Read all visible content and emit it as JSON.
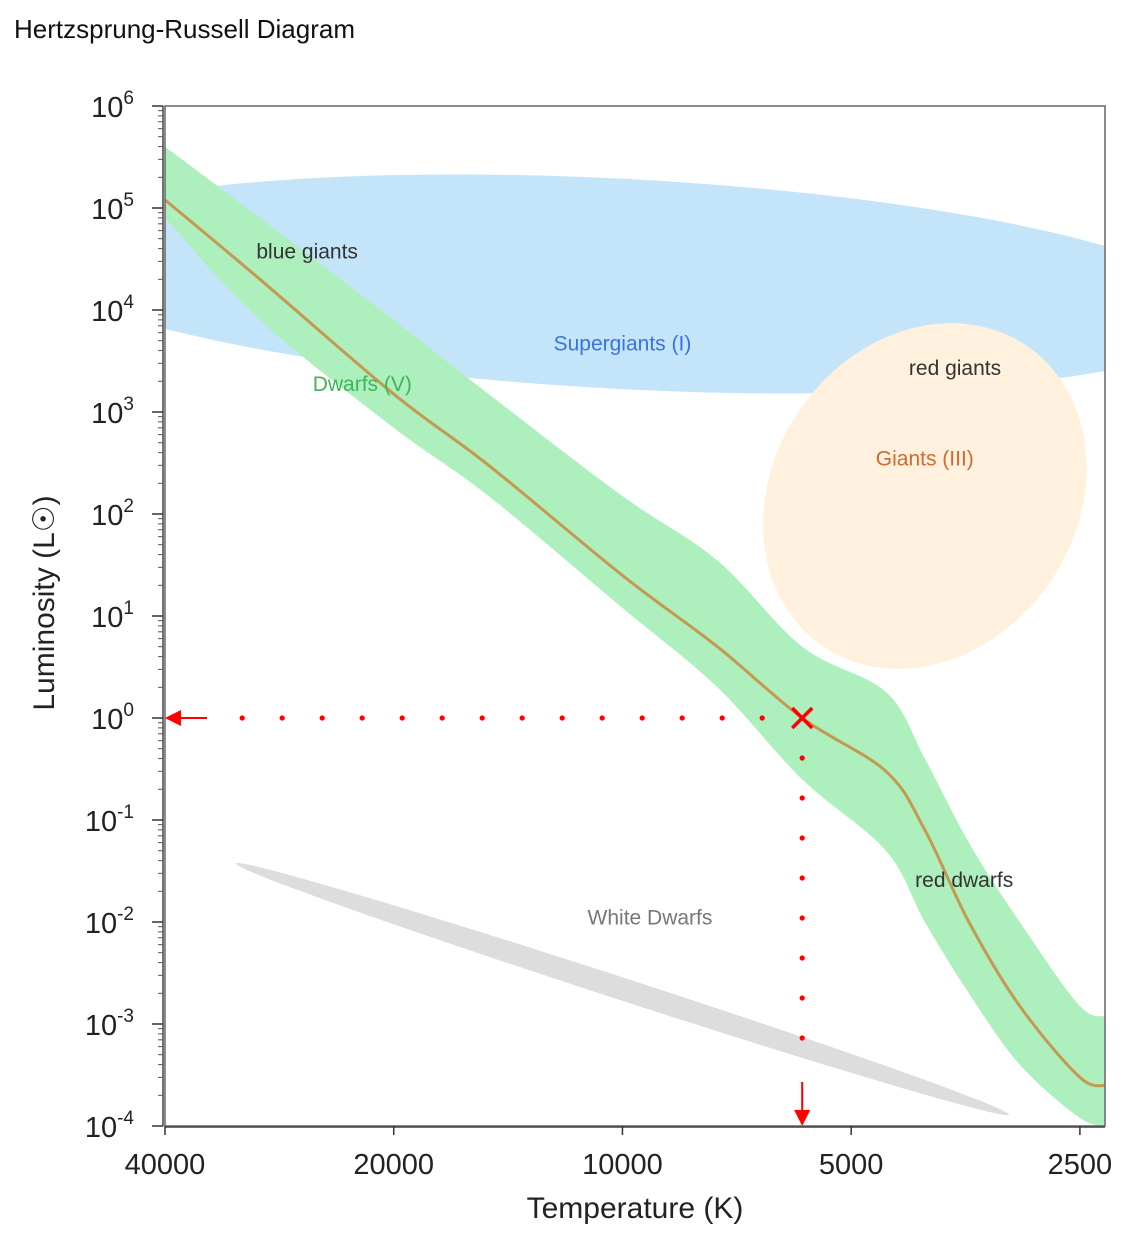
{
  "page": {
    "title": "Hertzsprung-Russell Diagram"
  },
  "chart_data": {
    "type": "scatter",
    "title": "Hertzsprung-Russell Diagram",
    "xlabel": "Temperature (K)",
    "ylabel": "Luminosity (L☉)",
    "x_scale": "log",
    "x_reversed": true,
    "xlim": [
      40000,
      2300
    ],
    "y_scale": "log",
    "ylim": [
      0.0001,
      1000000
    ],
    "x_ticks": [
      {
        "value": 40000,
        "label": "40000"
      },
      {
        "value": 20000,
        "label": "20000"
      },
      {
        "value": 10000,
        "label": "10000"
      },
      {
        "value": 5000,
        "label": "5000"
      },
      {
        "value": 2500,
        "label": "2500"
      }
    ],
    "y_ticks": [
      {
        "value": 1000000,
        "base": "10",
        "exp": "6"
      },
      {
        "value": 100000,
        "base": "10",
        "exp": "5"
      },
      {
        "value": 10000,
        "base": "10",
        "exp": "4"
      },
      {
        "value": 1000,
        "base": "10",
        "exp": "3"
      },
      {
        "value": 100,
        "base": "10",
        "exp": "2"
      },
      {
        "value": 10,
        "base": "10",
        "exp": "1"
      },
      {
        "value": 1,
        "base": "10",
        "exp": "0"
      },
      {
        "value": 0.1,
        "base": "10",
        "exp": "-1"
      },
      {
        "value": 0.01,
        "base": "10",
        "exp": "-2"
      },
      {
        "value": 0.001,
        "base": "10",
        "exp": "-3"
      },
      {
        "value": 0.0001,
        "base": "10",
        "exp": "-4"
      }
    ],
    "grid": false,
    "marker": {
      "temperature": 5800,
      "luminosity": 1,
      "color": "#ff0000",
      "style": "cross",
      "guides": "dotted red lines to both axes with arrowheads"
    },
    "main_sequence": {
      "label": "Dwarfs (V)",
      "band_color": "#adf0bd",
      "line_color": "#c49a52",
      "center": [
        [
          40000,
          120000
        ],
        [
          30000,
          20000
        ],
        [
          20000,
          1500
        ],
        [
          15000,
          300
        ],
        [
          10000,
          25
        ],
        [
          7500,
          5
        ],
        [
          5800,
          1
        ],
        [
          4500,
          0.3
        ],
        [
          4000,
          0.08
        ],
        [
          3500,
          0.01
        ],
        [
          3000,
          0.0015
        ],
        [
          2500,
          0.0003
        ],
        [
          2300,
          0.00025
        ]
      ],
      "upper": [
        [
          40000,
          400000
        ],
        [
          30000,
          80000
        ],
        [
          20000,
          8000
        ],
        [
          15000,
          1500
        ],
        [
          10000,
          150
        ],
        [
          7500,
          35
        ],
        [
          5800,
          5
        ],
        [
          4500,
          1.8
        ],
        [
          4000,
          0.4
        ],
        [
          3500,
          0.06
        ],
        [
          3000,
          0.01
        ],
        [
          2500,
          0.0015
        ],
        [
          2300,
          0.0012
        ]
      ],
      "lower": [
        [
          40000,
          80000
        ],
        [
          30000,
          8000
        ],
        [
          20000,
          700
        ],
        [
          15000,
          150
        ],
        [
          10000,
          12
        ],
        [
          7500,
          2
        ],
        [
          5800,
          0.25
        ],
        [
          4500,
          0.05
        ],
        [
          4000,
          0.01
        ],
        [
          3500,
          0.002
        ],
        [
          3000,
          0.0004
        ],
        [
          2500,
          0.00012
        ],
        [
          2300,
          0.0001
        ]
      ]
    },
    "regions": [
      {
        "name": "supergiants",
        "label": "Supergiants (I)",
        "sublabel": "blue giants",
        "fill": "#c4e4fa",
        "label_color": "#3b73dd",
        "sublabel_color": "#333333",
        "center": [
          10000,
          18000
        ],
        "radius_decades": [
          0.79,
          1.03
        ],
        "angle_deg": 3,
        "label_at": [
          10000,
          4000
        ],
        "sublabel_at": [
          26000,
          32000
        ]
      },
      {
        "name": "giants",
        "label": "Giants (III)",
        "sublabel": "red giants",
        "fill": "#fff1de",
        "label_color": "#d06a2f",
        "sublabel_color": "#333333",
        "center": [
          4000,
          150
        ],
        "radius_decades": [
          0.2,
          1.78
        ],
        "angle_deg": 34,
        "label_at": [
          4000,
          300
        ],
        "sublabel_at": [
          3650,
          2300
        ]
      },
      {
        "name": "white-dwarfs",
        "label": "White Dwarfs",
        "sublabel": "",
        "fill": "#dddddd",
        "label_color": "#777777",
        "center": [
          10000,
          0.0022
        ],
        "radius_decades": [
          0.535,
          0.11
        ],
        "angle_deg": 18,
        "label_at": [
          9200,
          0.0095
        ]
      }
    ],
    "annotations": [
      {
        "text": "red dwarfs",
        "temperature": 3550,
        "luminosity": 0.022,
        "color": "#333333"
      }
    ]
  }
}
